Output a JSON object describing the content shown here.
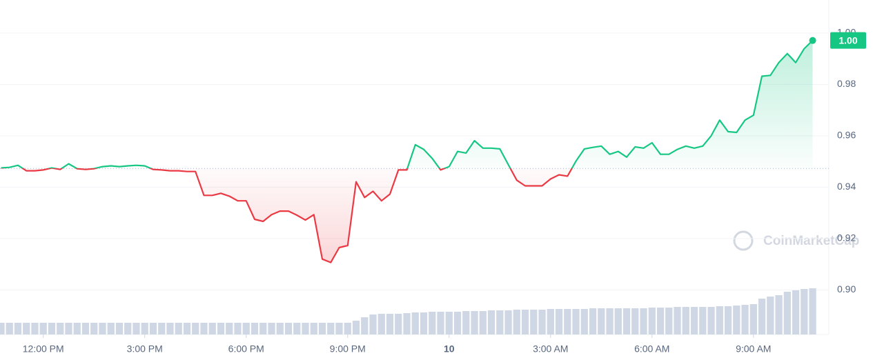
{
  "chart_data": {
    "type": "line",
    "x": [
      10.75,
      11,
      11.25,
      11.5,
      11.75,
      12,
      12.25,
      12.5,
      12.75,
      13,
      13.25,
      13.5,
      13.75,
      14,
      14.25,
      14.5,
      14.75,
      15,
      15.25,
      15.5,
      15.75,
      16,
      16.25,
      16.5,
      16.75,
      17,
      17.25,
      17.5,
      17.75,
      18,
      18.25,
      18.5,
      18.75,
      19,
      19.25,
      19.5,
      19.75,
      20,
      20.25,
      20.5,
      20.75,
      21,
      21.25,
      21.5,
      21.75,
      22,
      22.25,
      22.5,
      22.75,
      23,
      23.25,
      23.5,
      23.75,
      24,
      24.25,
      24.5,
      24.75,
      25,
      25.25,
      25.5,
      25.75,
      26,
      26.25,
      26.5,
      26.75,
      27,
      27.25,
      27.5,
      27.75,
      28,
      28.25,
      28.5,
      28.75,
      29,
      29.25,
      29.5,
      29.75,
      30,
      30.25,
      30.5,
      30.75,
      31,
      31.25,
      31.5,
      31.75,
      32,
      32.25,
      32.5,
      32.75,
      33,
      33.25,
      33.5,
      33.75,
      34,
      34.25,
      34.5,
      34.75
    ],
    "values": [
      0.9475,
      0.9477,
      0.9485,
      0.9464,
      0.9464,
      0.9467,
      0.9475,
      0.9469,
      0.9491,
      0.9472,
      0.9469,
      0.9472,
      0.948,
      0.9483,
      0.948,
      0.9483,
      0.9485,
      0.9483,
      0.9469,
      0.9467,
      0.9464,
      0.9464,
      0.9461,
      0.9461,
      0.9368,
      0.9368,
      0.9376,
      0.9365,
      0.9347,
      0.9347,
      0.9275,
      0.9267,
      0.9293,
      0.9307,
      0.9307,
      0.9291,
      0.9272,
      0.9293,
      0.912,
      0.9107,
      0.9165,
      0.9173,
      0.9421,
      0.936,
      0.9384,
      0.9347,
      0.9373,
      0.9467,
      0.9467,
      0.9565,
      0.9547,
      0.9512,
      0.9467,
      0.948,
      0.9539,
      0.9533,
      0.9581,
      0.9552,
      0.9552,
      0.9549,
      0.9488,
      0.9427,
      0.9405,
      0.9405,
      0.9405,
      0.9432,
      0.9448,
      0.9443,
      0.9501,
      0.9549,
      0.9555,
      0.956,
      0.9528,
      0.9539,
      0.9517,
      0.9557,
      0.9552,
      0.9573,
      0.9528,
      0.9528,
      0.9547,
      0.956,
      0.9552,
      0.956,
      0.96,
      0.9661,
      0.9616,
      0.9613,
      0.9661,
      0.968,
      0.9832,
      0.9835,
      0.9885,
      0.992,
      0.9885,
      0.9939,
      0.9971
    ],
    "volume": [
      17,
      17,
      17,
      17,
      17,
      17,
      17,
      17,
      17,
      17,
      17,
      17,
      17,
      17,
      17,
      17,
      17,
      17,
      17,
      17,
      17,
      17,
      17,
      17,
      17,
      17,
      17,
      17,
      17,
      17,
      17,
      17,
      17,
      17,
      17,
      17,
      17,
      17,
      17,
      17,
      17,
      17,
      20,
      25,
      29,
      30,
      30,
      30,
      31,
      32,
      32,
      33,
      33,
      33,
      33,
      34,
      34,
      34,
      35,
      35,
      35,
      36,
      36,
      36,
      36,
      37,
      37,
      37,
      37,
      37,
      38,
      38,
      38,
      38,
      38,
      38,
      38,
      39,
      39,
      39,
      40,
      40,
      40,
      40,
      40,
      41,
      41,
      42,
      43,
      44,
      52,
      55,
      57,
      62,
      64,
      66,
      67
    ],
    "volume_lim": [
      0,
      100
    ],
    "baseline": 0.9473,
    "up_color": "#16c784",
    "down_color": "#ea3943",
    "volume_color": "#cfd6e4",
    "xlim": [
      10.72,
      34.8
    ],
    "xticks": [
      {
        "value": 12,
        "label": "12:00 PM"
      },
      {
        "value": 15,
        "label": "3:00 PM"
      },
      {
        "value": 18,
        "label": "6:00 PM"
      },
      {
        "value": 21,
        "label": "9:00 PM"
      },
      {
        "value": 24,
        "label": "10"
      },
      {
        "value": 27,
        "label": "3:00 AM"
      },
      {
        "value": 30,
        "label": "6:00 AM"
      },
      {
        "value": 33,
        "label": "9:00 AM"
      }
    ],
    "ylim": [
      0.8823,
      1.0107
    ],
    "yticks": [
      {
        "value": 0.9,
        "label": "0.90"
      },
      {
        "value": 0.92,
        "label": "0.92"
      },
      {
        "value": 0.94,
        "label": "0.94"
      },
      {
        "value": 0.96,
        "label": "0.96"
      },
      {
        "value": 0.98,
        "label": "0.98"
      },
      {
        "value": 1.0,
        "label": "1.00"
      }
    ],
    "grid": true,
    "price_label": "1.00",
    "watermark": "CoinMarketCap"
  }
}
